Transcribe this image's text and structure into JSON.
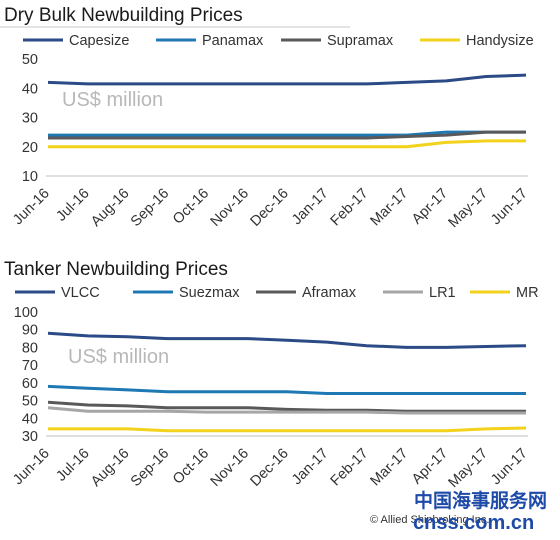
{
  "chart_data": [
    {
      "type": "line",
      "title": "Dry Bulk Newbuilding Prices",
      "unit_label": "US$ million",
      "categories": [
        "Jun-16",
        "Jul-16",
        "Aug-16",
        "Sep-16",
        "Oct-16",
        "Nov-16",
        "Dec-16",
        "Jan-17",
        "Feb-17",
        "Mar-17",
        "Apr-17",
        "May-17",
        "Jun-17"
      ],
      "ylim": [
        10,
        50
      ],
      "yticks": [
        10,
        20,
        30,
        40,
        50
      ],
      "legend_position": "top",
      "grid": false,
      "series": [
        {
          "name": "Capesize",
          "color": "#2b4a86",
          "values": [
            42,
            41.5,
            41.5,
            41.5,
            41.5,
            41.5,
            41.5,
            41.5,
            41.5,
            42,
            42.5,
            44,
            44.5
          ]
        },
        {
          "name": "Panamax",
          "color": "#1e78b4",
          "values": [
            24,
            24,
            24,
            24,
            24,
            24,
            24,
            24,
            24,
            24,
            25,
            25,
            25
          ]
        },
        {
          "name": "Supramax",
          "color": "#595959",
          "values": [
            23,
            23,
            23,
            23,
            23,
            23,
            23,
            23,
            23,
            23.5,
            24,
            25,
            25
          ]
        },
        {
          "name": "Handysize",
          "color": "#f2d21b",
          "values": [
            20,
            20,
            20,
            20,
            20,
            20,
            20,
            20,
            20,
            20,
            21.5,
            22,
            22
          ]
        }
      ]
    },
    {
      "type": "line",
      "title": "Tanker Newbuilding Prices",
      "unit_label": "US$ million",
      "categories": [
        "Jun-16",
        "Jul-16",
        "Aug-16",
        "Sep-16",
        "Oct-16",
        "Nov-16",
        "Dec-16",
        "Jan-17",
        "Feb-17",
        "Mar-17",
        "Apr-17",
        "May-17",
        "Jun-17"
      ],
      "ylim": [
        30,
        100
      ],
      "yticks": [
        30,
        40,
        50,
        60,
        70,
        80,
        90,
        100
      ],
      "legend_position": "top",
      "grid": false,
      "series": [
        {
          "name": "VLCC",
          "color": "#2b4a86",
          "values": [
            88,
            86.5,
            86,
            85,
            85,
            85,
            84,
            83,
            81,
            80,
            80,
            80.5,
            81
          ]
        },
        {
          "name": "Suezmax",
          "color": "#1e78b4",
          "values": [
            58,
            57,
            56,
            55,
            55,
            55,
            55,
            54,
            54,
            54,
            54,
            54,
            54
          ]
        },
        {
          "name": "Aframax",
          "color": "#595959",
          "values": [
            49,
            47.5,
            47,
            46,
            46,
            46,
            45,
            44.5,
            44.5,
            44,
            44,
            44,
            44
          ]
        },
        {
          "name": "LR1",
          "color": "#a6a6a6",
          "values": [
            46,
            44,
            44,
            44,
            43.5,
            43.5,
            43.5,
            43.5,
            43.5,
            43,
            43,
            43,
            43
          ]
        },
        {
          "name": "MR",
          "color": "#f2d21b",
          "values": [
            34,
            34,
            34,
            33,
            33,
            33,
            33,
            33,
            33,
            33,
            33,
            34,
            34.5
          ]
        }
      ]
    }
  ],
  "watermark": {
    "chinese": "中国海事服务网",
    "english": "cnss.com.cn",
    "copyright": "© Allied Shipbroking Inc."
  }
}
